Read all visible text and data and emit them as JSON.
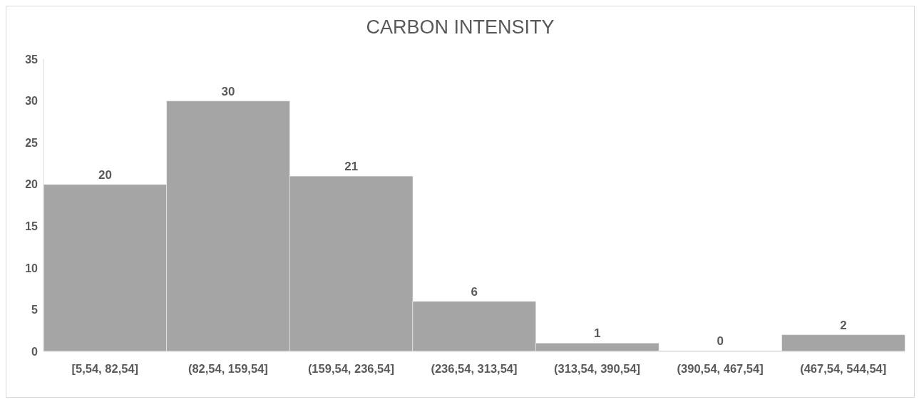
{
  "chart_data": {
    "type": "bar",
    "title": "CARBON INTENSITY",
    "categories": [
      "[5,54, 82,54]",
      "(82,54, 159,54]",
      "(159,54, 236,54]",
      "(236,54, 313,54]",
      "(313,54, 390,54]",
      "(390,54, 467,54]",
      "(467,54, 544,54]"
    ],
    "values": [
      20,
      30,
      21,
      6,
      1,
      0,
      2
    ],
    "color": "#a5a5a5",
    "ylim": [
      0,
      35
    ],
    "yticks": [
      0,
      5,
      10,
      15,
      20,
      25,
      30,
      35
    ],
    "grid": false,
    "data_labels": true
  }
}
